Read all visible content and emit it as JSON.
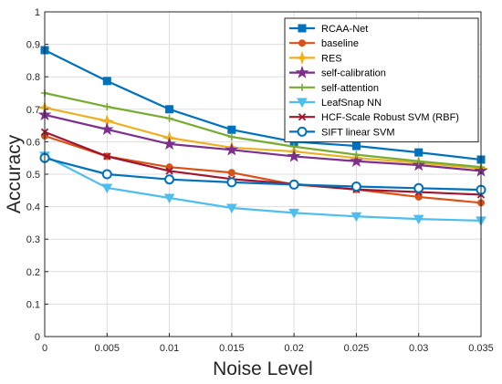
{
  "chart_data": {
    "type": "line",
    "xlabel": "Noise Level",
    "ylabel": "Accuracy",
    "xlim": [
      0,
      0.035
    ],
    "ylim": [
      0,
      1
    ],
    "x": [
      0,
      0.005,
      0.01,
      0.015,
      0.02,
      0.025,
      0.03,
      0.035
    ],
    "x_tick_labels": [
      "0",
      "0.005",
      "0.01",
      "0.015",
      "0.02",
      "0.025",
      "0.03",
      "0.035"
    ],
    "y_ticks": [
      0,
      0.1,
      0.2,
      0.3,
      0.4,
      0.5,
      0.6,
      0.7,
      0.8,
      0.9,
      1
    ],
    "y_tick_labels": [
      "0",
      "0.1",
      "0.2",
      "0.3",
      "0.4",
      "0.5",
      "0.6",
      "0.7",
      "0.8",
      "0.9",
      "1"
    ],
    "grid": true,
    "legend_position": "top-right",
    "series": [
      {
        "name": "RCAA-Net",
        "color": "#0072BD",
        "marker": "square",
        "values": [
          0.882,
          0.787,
          0.7,
          0.637,
          0.6,
          0.587,
          0.567,
          0.545
        ]
      },
      {
        "name": "baseline",
        "color": "#D95319",
        "marker": "circle",
        "values": [
          0.618,
          0.555,
          0.522,
          0.505,
          0.468,
          0.453,
          0.43,
          0.412
        ]
      },
      {
        "name": "RES",
        "color": "#EDB120",
        "marker": "plus-star",
        "values": [
          0.705,
          0.664,
          0.612,
          0.582,
          0.57,
          0.55,
          0.535,
          0.518
        ]
      },
      {
        "name": "self-calibration",
        "color": "#7E2F8E",
        "marker": "pentagram",
        "values": [
          0.683,
          0.638,
          0.593,
          0.575,
          0.555,
          0.54,
          0.528,
          0.51
        ]
      },
      {
        "name": "self-attention",
        "color": "#77AC30",
        "marker": "plus",
        "values": [
          0.75,
          0.708,
          0.672,
          0.615,
          0.585,
          0.56,
          0.54,
          0.522
        ]
      },
      {
        "name": "LeafSnap NN",
        "color": "#4DBEEE",
        "marker": "triangle-down",
        "values": [
          0.557,
          0.458,
          0.427,
          0.396,
          0.381,
          0.37,
          0.362,
          0.357
        ]
      },
      {
        "name": "HCF-Scale Robust SVM (RBF)",
        "color": "#A2142F",
        "marker": "x",
        "values": [
          0.63,
          0.555,
          0.51,
          0.485,
          0.47,
          0.453,
          0.445,
          0.437
        ]
      },
      {
        "name": "SIFT linear SVM",
        "color": "#0072BD",
        "marker": "circle-open",
        "values": [
          0.55,
          0.5,
          0.484,
          0.475,
          0.468,
          0.462,
          0.457,
          0.452
        ]
      }
    ]
  }
}
